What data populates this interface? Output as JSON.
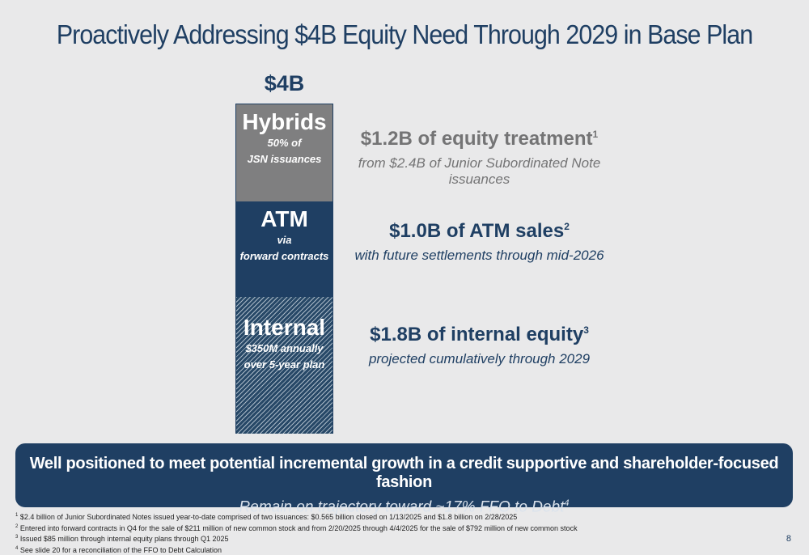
{
  "title": "Proactively Addressing $4B Equity Need Through 2029 in Base Plan",
  "total_label": "$4B",
  "segments": {
    "hybrids": {
      "name": "Hybrids",
      "sub1": "50% of",
      "sub2": "JSN issuances"
    },
    "atm": {
      "name": "ATM",
      "sub1": "via",
      "sub2": "forward contracts"
    },
    "internal": {
      "name": "Internal",
      "sub1": "$350M annually",
      "sub2": "over 5-year plan"
    }
  },
  "descriptions": {
    "hybrids": {
      "headline": "$1.2B of equity treatment",
      "ref": "1",
      "detail": "from $2.4B of Junior Subordinated Note issuances"
    },
    "atm": {
      "headline": "$1.0B of ATM sales",
      "ref": "2",
      "detail": "with future settlements through mid-2026"
    },
    "internal": {
      "headline": "$1.8B of internal equity",
      "ref": "3",
      "detail": "projected cumulatively through 2029"
    }
  },
  "banner": {
    "headline": "Well positioned to meet potential incremental growth in a credit supportive and shareholder-focused fashion",
    "subline": "Remain on trajectory toward ~17% FFO to Debt",
    "subline_ref": "4"
  },
  "footnotes": [
    {
      "ref": "1",
      "text": "$2.4 billion of Junior Subordinated Notes issued year-to-date comprised of two issuances: $0.565 billion closed on 1/13/2025 and $1.8 billion on 2/28/2025"
    },
    {
      "ref": "2",
      "text": "Entered into forward contracts in Q4 for the sale of $211 million of new common stock and from 2/20/2025 through 4/4/2025 for the sale of $792 million of new common stock"
    },
    {
      "ref": "3",
      "text": "Issued $85 million through internal equity plans through Q1 2025"
    },
    {
      "ref": "4",
      "text": "See slide 20 for a reconciliation of the FFO to Debt Calculation"
    }
  ],
  "page_number": "8",
  "colors": {
    "navy": "#1f3f63",
    "gray": "#7f7f80",
    "background": "#e9e9ea"
  }
}
